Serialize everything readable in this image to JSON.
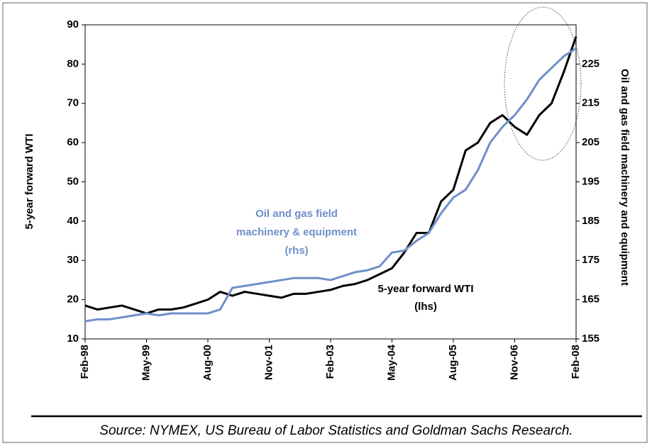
{
  "chart_data": {
    "type": "line",
    "y_label": "5-year forward WTI",
    "y2_label": "Oil and gas field machinery and equipment",
    "annotations": [
      "Oil and gas field",
      "machinery & equipment",
      "(rhs)",
      "5-year forward WTI",
      "(lhs)"
    ],
    "source": "Source: NYMEX, US Bureau of Labor Statistics and Goldman Sachs Research.",
    "categories": [
      "Feb-98",
      null,
      null,
      null,
      null,
      "May-99",
      null,
      null,
      null,
      null,
      "Aug-00",
      null,
      null,
      null,
      null,
      "Nov-01",
      null,
      null,
      null,
      null,
      "Feb-03",
      null,
      null,
      null,
      null,
      "May-04",
      null,
      null,
      null,
      null,
      "Aug-05",
      null,
      null,
      null,
      null,
      "Nov-06",
      null,
      null,
      null,
      null,
      "Feb-08"
    ],
    "ylim": [
      10,
      90
    ],
    "yticks": [
      10,
      20,
      30,
      40,
      50,
      60,
      70,
      80,
      90
    ],
    "y2lim": [
      155,
      235
    ],
    "y2ticks": [
      155,
      165,
      175,
      185,
      195,
      205,
      215,
      225
    ],
    "series": [
      {
        "name": "5-year forward WTI",
        "color": "#000000",
        "axis": "y",
        "values": [
          18.5,
          17.5,
          18,
          18.5,
          17.5,
          16.5,
          17.5,
          17.5,
          18,
          19,
          20,
          22,
          21,
          22,
          21.5,
          21,
          20.5,
          21.5,
          21.5,
          22,
          22.5,
          23.5,
          24,
          25,
          26.5,
          28,
          32,
          37,
          37,
          45,
          48,
          58,
          60,
          65,
          67,
          64,
          62,
          67,
          70,
          78,
          87
        ]
      },
      {
        "name": "Oil and gas field machinery & equipment",
        "color": "#6f8fc8",
        "axis": "y2",
        "values": [
          159.5,
          160,
          160,
          160.5,
          161,
          161.5,
          161,
          161.5,
          161.5,
          161.5,
          161.5,
          162.5,
          168,
          168.5,
          169,
          169.5,
          170,
          170.5,
          170.5,
          170.5,
          170,
          171,
          172,
          172.5,
          173.5,
          177,
          177.5,
          180,
          182,
          187,
          191,
          193,
          198,
          205,
          209,
          212,
          216,
          221,
          224,
          227,
          229
        ]
      }
    ]
  }
}
